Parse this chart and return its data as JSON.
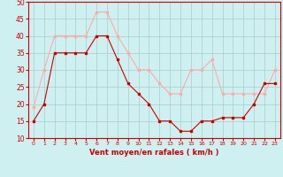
{
  "x": [
    0,
    1,
    2,
    3,
    4,
    5,
    6,
    7,
    8,
    9,
    10,
    11,
    12,
    13,
    14,
    15,
    16,
    17,
    18,
    19,
    20,
    21,
    22,
    23
  ],
  "mean_wind": [
    15,
    20,
    35,
    35,
    35,
    35,
    40,
    40,
    33,
    26,
    23,
    20,
    15,
    15,
    12,
    12,
    15,
    15,
    16,
    16,
    16,
    20,
    26,
    26
  ],
  "gust_wind": [
    19,
    30,
    40,
    40,
    40,
    40,
    47,
    47,
    40,
    35,
    30,
    30,
    26,
    23,
    23,
    30,
    30,
    33,
    23,
    23,
    23,
    23,
    23,
    30
  ],
  "mean_color": "#cc0000",
  "gust_color": "#ffaaaa",
  "bg_color": "#cff0f0",
  "grid_color": "#aacccc",
  "xlabel": "Vent moyen/en rafales ( km/h )",
  "xlabel_color": "#cc0000",
  "ylabel_min": 10,
  "ylabel_max": 50,
  "ylabel_step": 5,
  "figwidth": 3.2,
  "figheight": 2.0,
  "dpi": 100
}
